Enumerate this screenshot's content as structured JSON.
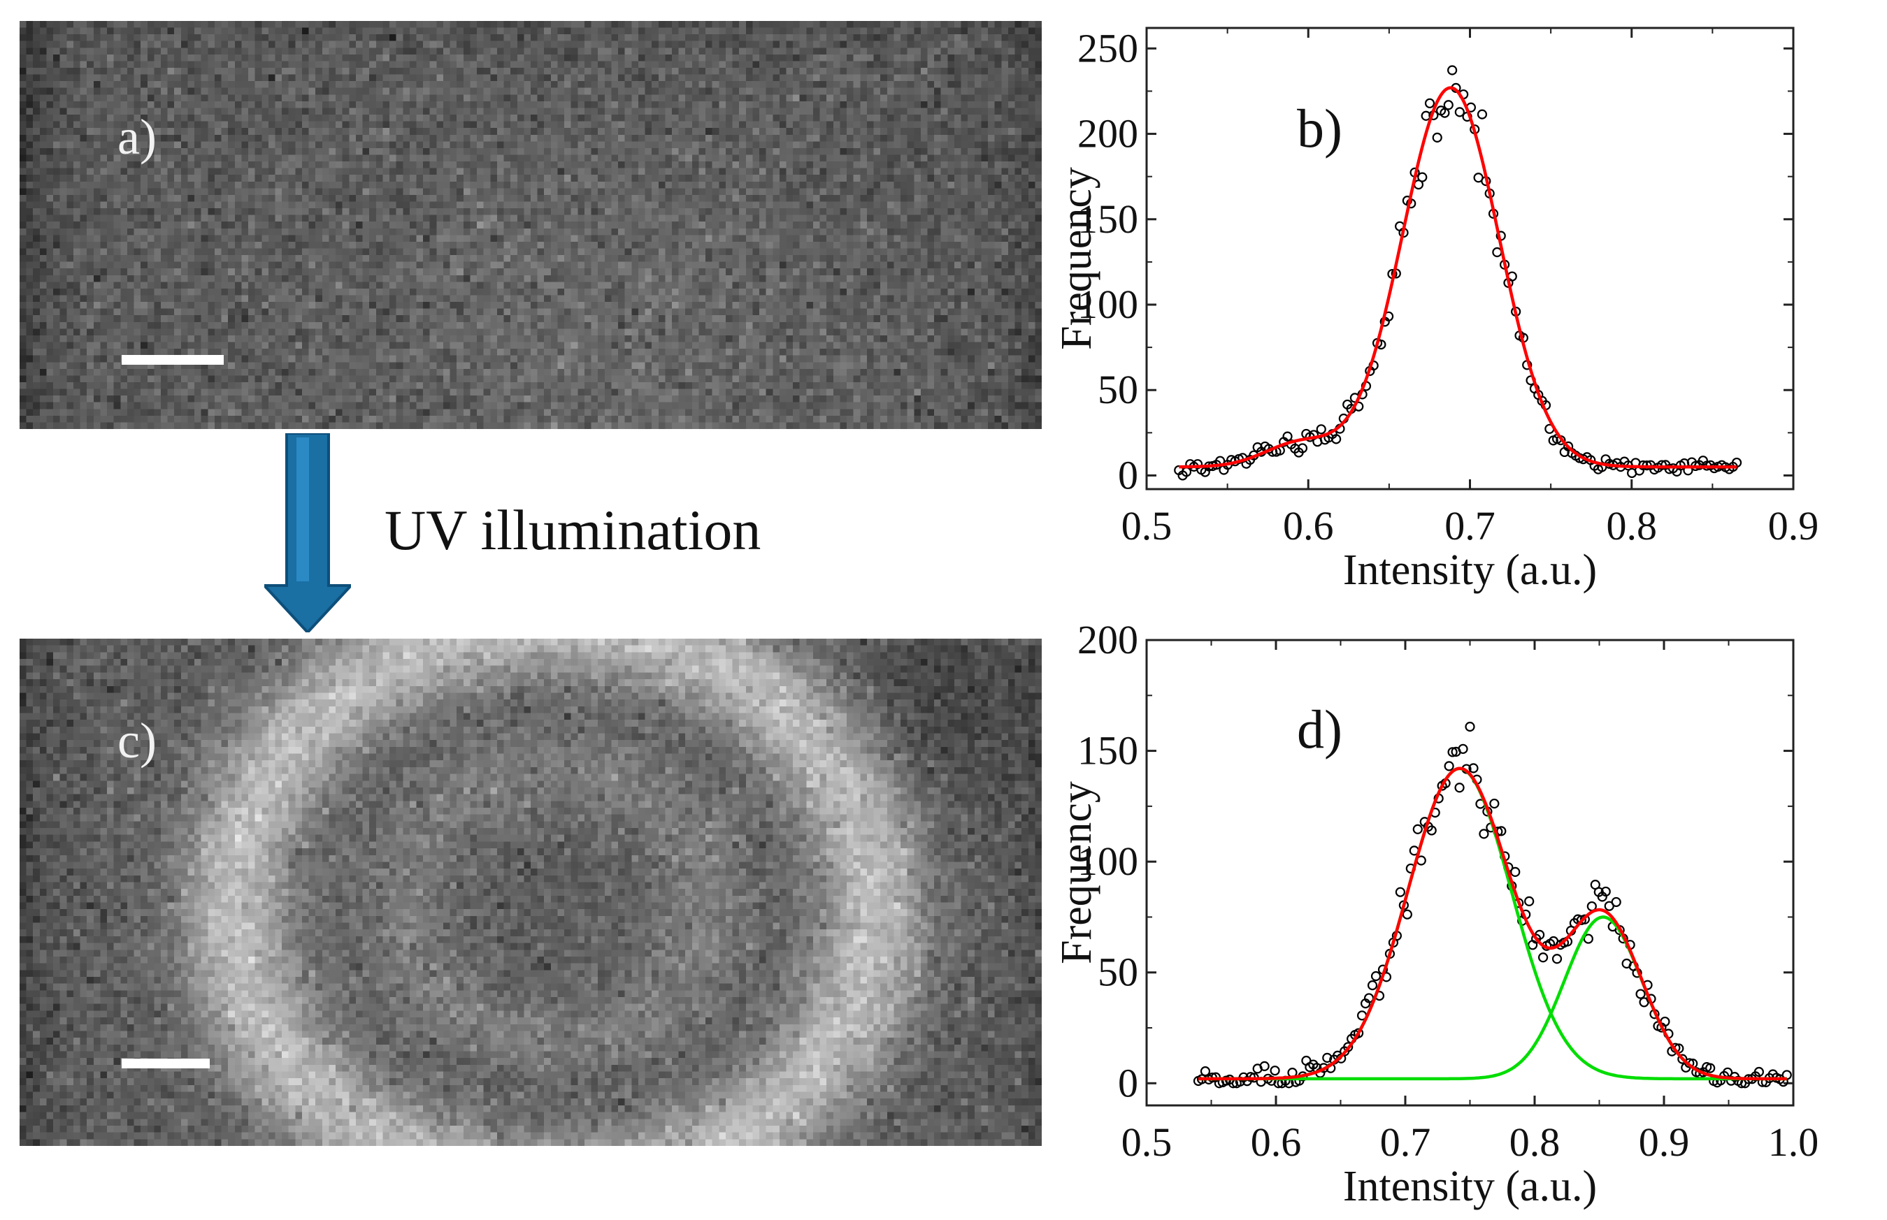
{
  "images": {
    "panel_a": {
      "label": "a)"
    },
    "panel_c": {
      "label": "c)"
    }
  },
  "arrow": {
    "label": "UV illumination",
    "color": "#1a6fa3"
  },
  "chart_data": [
    {
      "type": "scatter",
      "label": "b)",
      "xlabel": "Intensity (a.u.)",
      "ylabel": "Frequency",
      "xlim": [
        0.5,
        0.9
      ],
      "ylim": [
        -8,
        262
      ],
      "xticks": [
        0.5,
        0.6,
        0.7,
        0.8,
        0.9
      ],
      "xtick_labels": [
        "0.5",
        "0.6",
        "0.7",
        "0.8",
        "0.9"
      ],
      "yticks": [
        0,
        50,
        100,
        150,
        200,
        250
      ],
      "ytick_labels": [
        "0",
        "50",
        "100",
        "150",
        "200",
        "250"
      ],
      "fits": [
        {
          "name": "Gaussian fit",
          "color": "#ff0000",
          "components": [
            {
              "amp": 222,
              "mu": 0.688,
              "sigma": 0.03
            },
            {
              "amp": 14,
              "mu": 0.595,
              "sigma": 0.022
            }
          ],
          "baseline": 5
        }
      ],
      "points": {
        "color": "#000000",
        "x_range": [
          0.52,
          0.865
        ],
        "count": 150,
        "fit_index": 0
      }
    },
    {
      "type": "scatter",
      "label": "d)",
      "xlabel": "Intensity (a.u.)",
      "ylabel": "Frequency",
      "xlim": [
        0.5,
        1.0
      ],
      "ylim": [
        -10,
        200
      ],
      "xticks": [
        0.5,
        0.6,
        0.7,
        0.8,
        0.9,
        1.0
      ],
      "xtick_labels": [
        "0.5",
        "0.6",
        "0.7",
        "0.8",
        "0.9",
        "1.0"
      ],
      "yticks": [
        0,
        50,
        100,
        150,
        200
      ],
      "ytick_labels": [
        "0",
        "50",
        "100",
        "150",
        "200"
      ],
      "fits": [
        {
          "name": "Peak 1 fit",
          "color": "#00dd00",
          "components": [
            {
              "amp": 140,
              "mu": 0.742,
              "sigma": 0.04
            }
          ],
          "baseline": 2
        },
        {
          "name": "Peak 2 fit",
          "color": "#00dd00",
          "components": [
            {
              "amp": 73,
              "mu": 0.853,
              "sigma": 0.03
            }
          ],
          "baseline": 2
        },
        {
          "name": "Total fit",
          "color": "#ff0000",
          "components": [
            {
              "amp": 140,
              "mu": 0.742,
              "sigma": 0.04
            },
            {
              "amp": 73,
              "mu": 0.853,
              "sigma": 0.03
            }
          ],
          "baseline": 2
        }
      ],
      "points": {
        "color": "#000000",
        "x_range": [
          0.54,
          0.995
        ],
        "count": 170,
        "fit_index": 2
      }
    }
  ]
}
